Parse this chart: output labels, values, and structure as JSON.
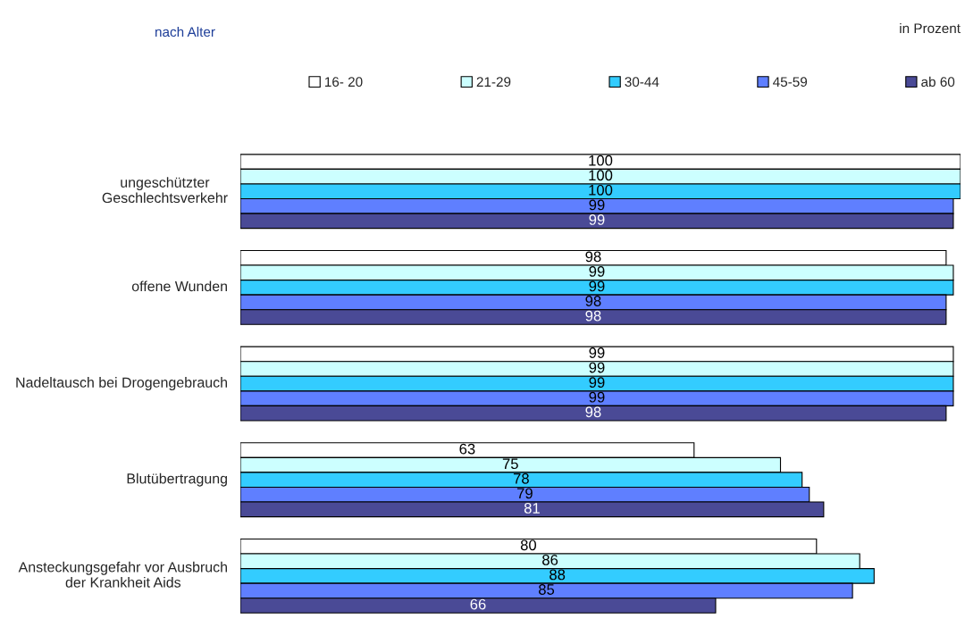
{
  "chart_data": {
    "type": "bar",
    "orientation": "horizontal",
    "title": "nach Alter",
    "annotations": [
      "in Prozent"
    ],
    "categories": [
      "ungeschützter Geschlechtsverkehr",
      "offene Wunden",
      "Nadeltausch bei Drogengebrauch",
      "Blutübertragung",
      "Ansteckungsgefahr vor Ausbruch der Krankheit Aids"
    ],
    "series": [
      {
        "name": "16- 20",
        "color": "#ffffff",
        "values": [
          100,
          98,
          99,
          63,
          80
        ]
      },
      {
        "name": "21-29",
        "color": "#ccffff",
        "values": [
          100,
          99,
          99,
          75,
          86
        ]
      },
      {
        "name": "30-44",
        "color": "#33ccff",
        "values": [
          100,
          99,
          99,
          78,
          88
        ]
      },
      {
        "name": "45-59",
        "color": "#5f7fff",
        "values": [
          99,
          98,
          99,
          79,
          85
        ]
      },
      {
        "name": "ab 60",
        "color": "#4a4a96",
        "values": [
          99,
          98,
          98,
          81,
          66
        ]
      }
    ],
    "xlim": [
      0,
      100
    ],
    "data_labels": true,
    "legend": "top",
    "grid": false
  }
}
